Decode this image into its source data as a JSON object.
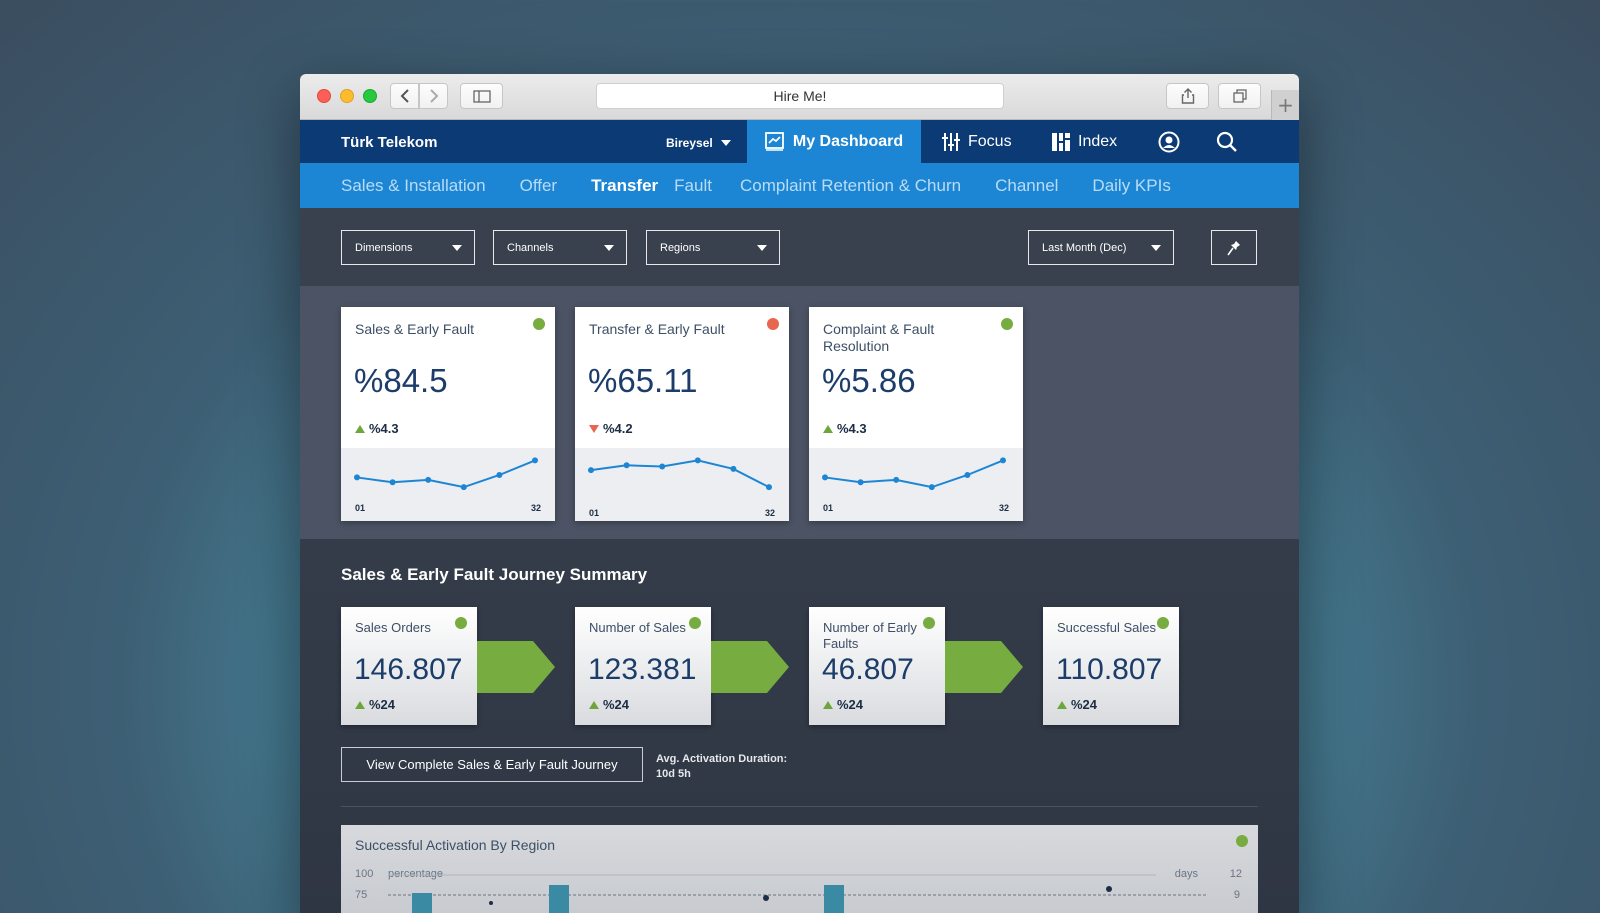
{
  "browser": {
    "url_title": "Hire Me!",
    "plus_label": "+"
  },
  "topnav": {
    "brand": "Türk Telekom",
    "persona": "Bireysel",
    "items": [
      {
        "label": "My Dashboard",
        "icon": "chart-icon",
        "active": true
      },
      {
        "label": "Focus",
        "icon": "sliders-icon"
      },
      {
        "label": "Index",
        "icon": "grid-icon"
      }
    ]
  },
  "subnav": {
    "tabs": [
      "Sales & Installation",
      "Offer",
      "Transfer",
      "Fault",
      "Complaint Retention & Churn",
      "Channel",
      "Daily KPIs"
    ],
    "active": "Transfer"
  },
  "filters": {
    "dimensions": "Dimensions",
    "channels": "Channels",
    "regions": "Regions",
    "period": "Last Month (Dec)"
  },
  "kpis": [
    {
      "title": "Sales & Early Fault",
      "value": "%84.5",
      "delta": "%4.3",
      "trend": "up",
      "status_color": "#77ad40",
      "x_start": "01",
      "x_end": "32",
      "spark": [
        8,
        6,
        7,
        4,
        9,
        15
      ]
    },
    {
      "title": "Transfer & Early Fault",
      "value": "%65.11",
      "delta": "%4.2",
      "trend": "down",
      "status_color": "#e8664d",
      "x_start": "01",
      "x_end": "32",
      "spark": [
        11,
        13,
        12.5,
        15,
        11.5,
        4
      ]
    },
    {
      "title": "Complaint & Fault Resolution",
      "value": "%5.86",
      "delta": "%4.3",
      "trend": "up",
      "status_color": "#77ad40",
      "x_start": "01",
      "x_end": "32",
      "spark": [
        8,
        6,
        7,
        4,
        9,
        15
      ]
    }
  ],
  "journey": {
    "title": "Sales & Early Fault Journey Summary",
    "steps": [
      {
        "title": "Sales Orders",
        "value": "146.807",
        "delta": "%24"
      },
      {
        "title": "Number of Sales",
        "value": "123.381",
        "delta": "%24"
      },
      {
        "title": "Number of Early Faults",
        "value": "46.807",
        "delta": "%24"
      },
      {
        "title": "Successful Sales",
        "value": "110.807",
        "delta": "%24"
      }
    ],
    "view_button": "View Complete Sales & Early Fault Journey",
    "avg_label": "Avg. Activation Duration:",
    "avg_value": "10d 5h"
  },
  "region_chart": {
    "title": "Successful Activation By Region",
    "y_left_label": "percentage",
    "y_right_label": "days",
    "y_left_ticks": [
      "100",
      "75"
    ],
    "y_right_ticks": [
      "12",
      "9"
    ]
  },
  "colors": {
    "nav_dark": "#0c3a74",
    "nav_blue": "#1d86d4",
    "ok": "#77ad40",
    "bad": "#e8664d"
  }
}
